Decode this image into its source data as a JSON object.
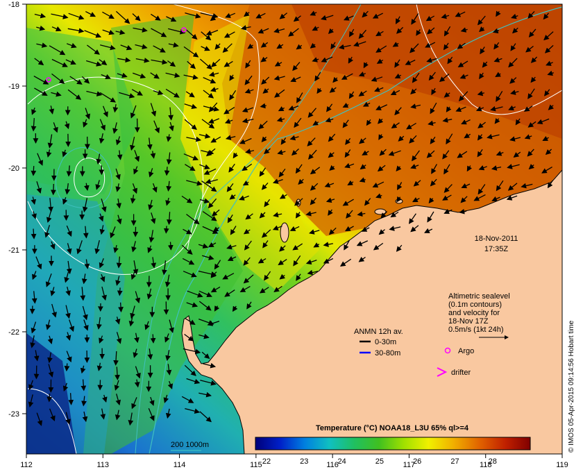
{
  "map": {
    "lon_ticks": [
      "112",
      "113",
      "114",
      "115",
      "116",
      "117",
      "118",
      "119"
    ],
    "lat_ticks": [
      "-18",
      "-19",
      "-20",
      "-21",
      "-22",
      "-23"
    ],
    "date": "18-Nov-2011",
    "time": "17:35Z",
    "sealevel_note": [
      "Altimetric sealevel",
      "(0.1m contours)",
      "and velocity for",
      "18-Nov 17Z",
      "0.5m/s (1kt 24h)"
    ],
    "anmn_title": "ANMN 12h av.",
    "anmn_shallow": "0-30m",
    "anmn_deep": "30-80m",
    "argo_label": "Argo",
    "drifter_label": "drifter",
    "isobath_label": "200  1000m",
    "colorbar_title": "Temperature (°C) NOAA18_L3U 65% ql>=4",
    "colorbar_ticks": [
      "22",
      "23",
      "24",
      "25",
      "26",
      "27",
      "28"
    ],
    "credit": "© IMOS 05-Apr-2015 09:14:56 Hobart time",
    "colors": {
      "land": "#f9c8a0",
      "anmn_shallow": "#000000",
      "anmn_deep": "#0000ff",
      "argo": "#ff00ff",
      "isobath": "#40c0c0"
    },
    "colorbar_stops": [
      "#00007a",
      "#0020c8",
      "#0080e0",
      "#10c0c0",
      "#20c060",
      "#40c020",
      "#a0e000",
      "#f0f000",
      "#f0b000",
      "#e06000",
      "#c02000",
      "#800000"
    ]
  }
}
